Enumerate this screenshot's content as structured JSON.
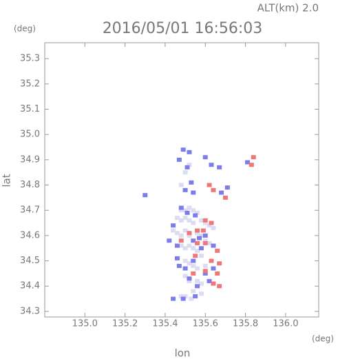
{
  "chart_data": {
    "type": "scatter",
    "title": "2016/05/01 16:56:03",
    "annotation": "ALT(km) 2.0",
    "y_unit": "(deg)",
    "x_unit": "(deg)",
    "xlabel": "lon",
    "ylabel": "lat",
    "xlim": [
      134.8,
      136.165
    ],
    "ylim": [
      34.278,
      35.363
    ],
    "xticks": [
      {
        "value": 135,
        "label": "135.0"
      },
      135.2,
      135.4,
      135.6,
      135.8,
      {
        "value": 136,
        "label": "136.0"
      }
    ],
    "yticks": [
      34.3,
      34.4,
      34.5,
      34.6,
      34.7,
      34.8,
      34.9,
      {
        "value": 35,
        "label": "35.0"
      },
      35.1,
      35.2,
      35.3
    ],
    "series": [
      {
        "color": "#dcdcf2",
        "x": [
          135.48,
          135.5,
          135.52,
          135.54,
          135.56,
          135.46,
          135.48,
          135.5,
          135.52,
          135.54,
          135.58,
          135.6,
          135.62,
          135.64,
          135.44,
          135.46,
          135.48,
          135.5,
          135.52,
          135.56,
          135.58,
          135.6,
          135.62,
          135.48,
          135.5,
          135.52,
          135.54,
          135.56,
          135.58,
          135.5,
          135.52,
          135.54,
          135.56,
          135.6,
          135.5,
          135.52,
          135.56,
          135.58,
          135.54,
          135.58,
          135.48,
          135.5,
          135.53,
          135.48,
          135.5,
          135.52
        ],
        "values": [
          34.7,
          34.7,
          34.71,
          34.7,
          34.69,
          34.67,
          34.66,
          34.67,
          34.66,
          34.65,
          34.66,
          34.65,
          34.64,
          34.63,
          34.62,
          34.61,
          34.6,
          34.62,
          34.6,
          34.61,
          34.6,
          34.58,
          34.57,
          34.56,
          34.55,
          34.56,
          34.55,
          34.54,
          34.52,
          34.5,
          34.49,
          34.48,
          34.47,
          34.48,
          34.44,
          34.42,
          34.42,
          34.41,
          34.38,
          34.37,
          34.36,
          34.36,
          34.35,
          34.8,
          34.85,
          34.88
        ]
      },
      {
        "color": "#7c7cea",
        "x": [
          135.49,
          135.52,
          135.47,
          135.51,
          135.53,
          135.5,
          135.54,
          135.6,
          135.63,
          135.67,
          135.71,
          135.68,
          135.81,
          135.3,
          135.48,
          135.51,
          135.55,
          135.44,
          135.42,
          135.46,
          135.54,
          135.6,
          135.58,
          135.64,
          135.46,
          135.5,
          135.54,
          135.6,
          135.64,
          135.52,
          135.56,
          135.62,
          135.44,
          135.49,
          135.55,
          135.57,
          135.47
        ],
        "values": [
          34.94,
          34.93,
          34.9,
          34.87,
          34.81,
          34.78,
          34.77,
          34.91,
          34.88,
          34.87,
          34.79,
          34.77,
          34.89,
          34.76,
          34.71,
          34.69,
          34.68,
          34.64,
          34.58,
          34.56,
          34.58,
          34.6,
          34.55,
          34.56,
          34.51,
          34.47,
          34.5,
          34.45,
          34.47,
          34.43,
          34.4,
          34.42,
          34.35,
          34.35,
          34.36,
          34.59,
          34.48
        ]
      },
      {
        "color": "#ee7878",
        "x": [
          135.84,
          135.83,
          135.62,
          135.64,
          135.7,
          135.6,
          135.63,
          135.56,
          135.59,
          135.52,
          135.48,
          135.6,
          135.56,
          135.55,
          135.63,
          135.67,
          135.6,
          135.66,
          135.64,
          135.67,
          135.54,
          135.66
        ],
        "values": [
          34.91,
          34.88,
          34.8,
          34.78,
          34.75,
          34.66,
          34.65,
          34.62,
          34.62,
          34.61,
          34.58,
          34.57,
          34.57,
          34.52,
          34.5,
          34.49,
          34.46,
          34.45,
          34.41,
          34.4,
          34.45,
          34.54
        ]
      }
    ]
  }
}
